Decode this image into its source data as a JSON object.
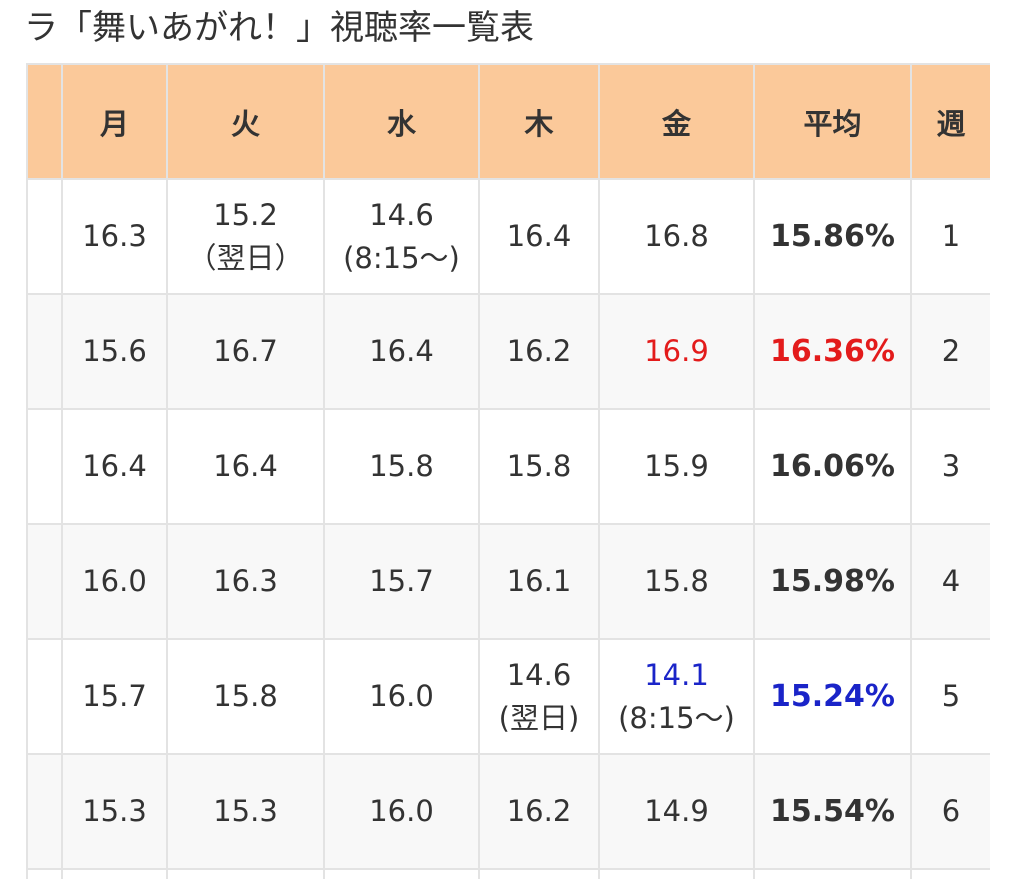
{
  "title": "ラ「舞いあがれ！」視聴率一覧表",
  "colors": {
    "header_bg": "#fbc99a",
    "border": "#e3e3e3",
    "highlight_red": "#e31b1b",
    "highlight_blue": "#1a24c8"
  },
  "table": {
    "headers": [
      "",
      "月",
      "火",
      "水",
      "木",
      "金",
      "平均",
      "週"
    ],
    "rows": [
      {
        "mon": "16.3",
        "tue": "15.2",
        "tue_note": "（翌日）",
        "wed": "14.6",
        "wed_note": "(8:15〜)",
        "thu": "16.4",
        "fri": "16.8",
        "avg": "15.86%",
        "week": "1"
      },
      {
        "mon": "15.6",
        "tue": "16.7",
        "wed": "16.4",
        "thu": "16.2",
        "fri": "16.9",
        "avg": "16.36%",
        "week": "2",
        "highlight": "red"
      },
      {
        "mon": "16.4",
        "tue": "16.4",
        "wed": "15.8",
        "thu": "15.8",
        "fri": "15.9",
        "avg": "16.06%",
        "week": "3"
      },
      {
        "mon": "16.0",
        "tue": "16.3",
        "wed": "15.7",
        "thu": "16.1",
        "fri": "15.8",
        "avg": "15.98%",
        "week": "4"
      },
      {
        "mon": "15.7",
        "tue": "15.8",
        "wed": "16.0",
        "thu": "14.6",
        "thu_note": "(翌日)",
        "fri": "14.1",
        "fri_note": "(8:15〜)",
        "avg": "15.24%",
        "week": "5",
        "highlight": "blue"
      },
      {
        "mon": "15.3",
        "tue": "15.3",
        "wed": "16.0",
        "thu": "16.2",
        "fri": "14.9",
        "avg": "15.54%",
        "week": "6"
      }
    ]
  }
}
